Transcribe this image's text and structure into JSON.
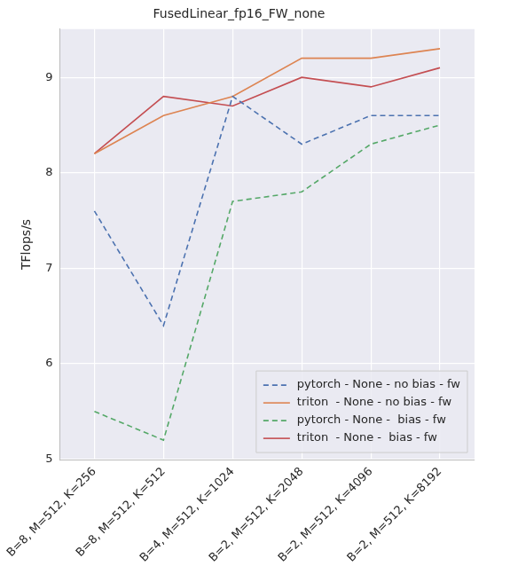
{
  "chart_data": {
    "type": "line",
    "title": "FusedLinear_fp16_FW_none",
    "y_label": "TFlops/s",
    "categories": [
      "B=8, M=512, K=256",
      "B=8, M=512, K=512",
      "B=4, M=512, K=1024",
      "B=2, M=512, K=2048",
      "B=2, M=512, K=4096",
      "B=2, M=512, K=8192"
    ],
    "series": [
      {
        "name": "pytorch - None - no bias - fw",
        "color": "#4c72b0",
        "line_style": "dashed",
        "values": [
          7.6,
          6.4,
          8.8,
          8.3,
          8.6,
          8.6
        ]
      },
      {
        "name": "triton  - None - no bias - fw",
        "color": "#dd8452",
        "line_style": "solid",
        "values": [
          8.2,
          8.6,
          8.8,
          9.2,
          9.2,
          9.3
        ]
      },
      {
        "name": "pytorch - None -  bias - fw",
        "color": "#55a868",
        "line_style": "dashed",
        "values": [
          5.5,
          5.2,
          7.7,
          7.8,
          8.3,
          8.5
        ]
      },
      {
        "name": "triton  - None -  bias - fw",
        "color": "#c44e52",
        "line_style": "solid",
        "values": [
          8.2,
          8.8,
          8.7,
          9.0,
          8.9,
          9.1
        ]
      }
    ],
    "ylim": [
      4.995,
      9.505
    ],
    "yticks": [
      5,
      6,
      7,
      8,
      9
    ],
    "grid": true,
    "legend": "lower right"
  }
}
